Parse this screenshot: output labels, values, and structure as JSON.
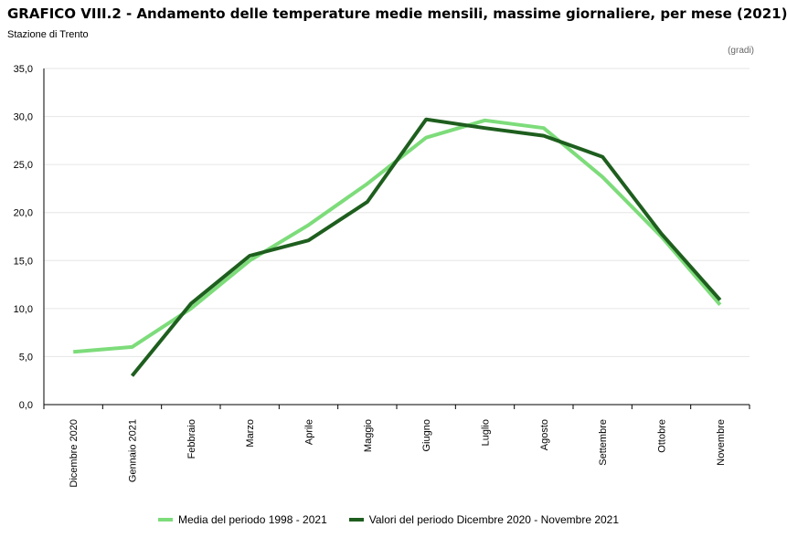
{
  "title": "GRAFICO VIII.2 - Andamento delle temperature medie mensili, massime giornaliere, per mese (2021)",
  "subtitle": "Stazione di Trento",
  "unit": "(gradi)",
  "chart_data": {
    "type": "line",
    "title": "GRAFICO VIII.2 - Andamento delle temperature medie mensili, massime giornaliere, per mese (2021)",
    "categories": [
      "Dicembre 2020",
      "Gennaio 2021",
      "Febbraio",
      "Marzo",
      "Aprile",
      "Maggio",
      "Giugno",
      "Luglio",
      "Agosto",
      "Settembre",
      "Ottobre",
      "Novembre"
    ],
    "ylim": [
      0,
      35
    ],
    "yticks": [
      "0,0",
      "5,0",
      "10,0",
      "15,0",
      "20,0",
      "25,0",
      "30,0",
      "35,0"
    ],
    "ylabel": "(gradi)",
    "grid": true,
    "legend_position": "bottom",
    "series": [
      {
        "name": "Media del periodo 1998 - 2021",
        "color": "#7ddc7a",
        "values": [
          5.5,
          6.0,
          10.0,
          15.0,
          18.7,
          23.0,
          27.8,
          29.6,
          28.8,
          23.7,
          17.5,
          10.4
        ]
      },
      {
        "name": "Valori del periodo Dicembre 2020 - Novembre 2021",
        "color": "#1e5e1e",
        "values": [
          null,
          3.0,
          10.5,
          15.5,
          17.1,
          21.1,
          29.7,
          28.8,
          28.0,
          25.8,
          17.8,
          10.9
        ]
      }
    ]
  }
}
